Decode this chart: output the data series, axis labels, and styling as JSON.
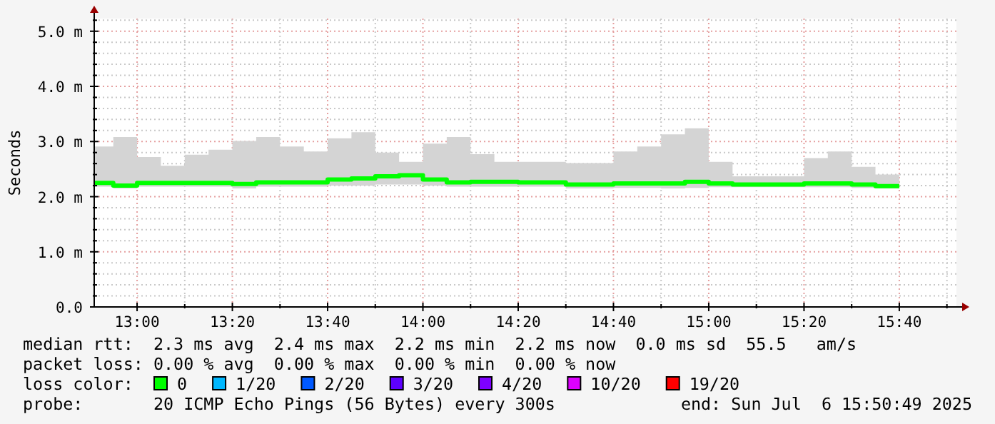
{
  "chart_data": {
    "type": "step",
    "ylabel": "Seconds",
    "x": [
      "2025-07-06T12:55",
      "2025-07-06T13:00",
      "2025-07-06T13:05",
      "2025-07-06T13:10",
      "2025-07-06T13:15",
      "2025-07-06T13:20",
      "2025-07-06T13:25",
      "2025-07-06T13:30",
      "2025-07-06T13:35",
      "2025-07-06T13:40",
      "2025-07-06T13:45",
      "2025-07-06T13:50",
      "2025-07-06T13:55",
      "2025-07-06T14:00",
      "2025-07-06T14:05",
      "2025-07-06T14:10",
      "2025-07-06T14:15",
      "2025-07-06T14:20",
      "2025-07-06T14:25",
      "2025-07-06T14:30",
      "2025-07-06T14:35",
      "2025-07-06T14:40",
      "2025-07-06T14:45",
      "2025-07-06T14:50",
      "2025-07-06T14:55",
      "2025-07-06T15:00",
      "2025-07-06T15:05",
      "2025-07-06T15:10",
      "2025-07-06T15:15",
      "2025-07-06T15:20",
      "2025-07-06T15:25",
      "2025-07-06T15:30",
      "2025-07-06T15:35",
      "2025-07-06T15:40"
    ],
    "series": [
      {
        "name": "0",
        "color": "#00ff00",
        "values": [
          2.25,
          2.2,
          2.25,
          2.25,
          2.25,
          2.25,
          2.23,
          2.26,
          2.26,
          2.26,
          2.31,
          2.33,
          2.37,
          2.39,
          2.31,
          2.26,
          2.27,
          2.27,
          2.26,
          2.26,
          2.22,
          2.22,
          2.24,
          2.24,
          2.24,
          2.27,
          2.24,
          2.22,
          2.22,
          2.22,
          2.24,
          2.24,
          2.22,
          2.19
        ],
        "lower": [
          2.18,
          2.15,
          2.18,
          2.18,
          2.18,
          2.18,
          2.15,
          2.18,
          2.18,
          2.18,
          2.2,
          2.2,
          2.22,
          2.22,
          2.2,
          2.18,
          2.18,
          2.18,
          2.18,
          2.18,
          2.15,
          2.15,
          2.16,
          2.16,
          2.15,
          2.16,
          2.17,
          2.17,
          2.17,
          2.17,
          2.17,
          2.17,
          2.16,
          2.15
        ],
        "upper": [
          2.91,
          3.08,
          2.72,
          2.56,
          2.76,
          2.85,
          3.01,
          3.08,
          2.91,
          2.82,
          3.06,
          3.17,
          2.8,
          2.63,
          2.96,
          3.08,
          2.77,
          2.63,
          2.63,
          2.63,
          2.61,
          2.61,
          2.82,
          2.91,
          3.13,
          3.24,
          2.63,
          2.37,
          2.37,
          2.37,
          2.7,
          2.82,
          2.54,
          2.4
        ]
      },
      {
        "name": "1/20",
        "color": "#00b8ff",
        "values": [
          null,
          null,
          null,
          null,
          null,
          null,
          null,
          null,
          null,
          null,
          null,
          null,
          null,
          null,
          null,
          null,
          null,
          null,
          null,
          null,
          null,
          null,
          null,
          null,
          null,
          null,
          null,
          null,
          null,
          null,
          null,
          null,
          null,
          null
        ]
      },
      {
        "name": "2/20",
        "color": "#0059ff",
        "values": [
          null,
          null,
          null,
          null,
          null,
          null,
          null,
          null,
          null,
          null,
          null,
          null,
          null,
          null,
          null,
          null,
          null,
          null,
          null,
          null,
          null,
          null,
          null,
          null,
          null,
          null,
          null,
          null,
          null,
          null,
          null,
          null,
          null,
          null
        ]
      },
      {
        "name": "3/20",
        "color": "#5e00ff",
        "values": [
          null,
          null,
          null,
          null,
          null,
          null,
          null,
          null,
          null,
          null,
          null,
          null,
          null,
          null,
          null,
          null,
          null,
          null,
          null,
          null,
          null,
          null,
          null,
          null,
          null,
          null,
          null,
          null,
          null,
          null,
          null,
          null,
          null,
          null
        ]
      },
      {
        "name": "4/20",
        "color": "#7e00ff",
        "values": [
          null,
          null,
          null,
          null,
          null,
          null,
          null,
          null,
          null,
          null,
          null,
          null,
          null,
          null,
          null,
          null,
          null,
          null,
          null,
          null,
          null,
          null,
          null,
          null,
          null,
          null,
          null,
          null,
          null,
          null,
          null,
          null,
          null,
          null
        ]
      },
      {
        "name": "10/20",
        "color": "#dd00ff",
        "values": [
          null,
          null,
          null,
          null,
          null,
          null,
          null,
          null,
          null,
          null,
          null,
          null,
          null,
          null,
          null,
          null,
          null,
          null,
          null,
          null,
          null,
          null,
          null,
          null,
          null,
          null,
          null,
          null,
          null,
          null,
          null,
          null,
          null,
          null
        ]
      },
      {
        "name": "19/20",
        "color": "#ff0000",
        "values": [
          null,
          null,
          null,
          null,
          null,
          null,
          null,
          null,
          null,
          null,
          null,
          null,
          null,
          null,
          null,
          null,
          null,
          null,
          null,
          null,
          null,
          null,
          null,
          null,
          null,
          null,
          null,
          null,
          null,
          null,
          null,
          null,
          null,
          null
        ]
      }
    ],
    "xlim": [
      "2025-07-06T12:51",
      "2025-07-06T15:52"
    ],
    "xticks": [
      {
        "value": "2025-07-06T13:00",
        "label": "13:00"
      },
      {
        "value": "2025-07-06T13:10",
        "label": null
      },
      {
        "value": "2025-07-06T13:20",
        "label": "13:20"
      },
      {
        "value": "2025-07-06T13:30",
        "label": null
      },
      {
        "value": "2025-07-06T13:40",
        "label": "13:40"
      },
      {
        "value": "2025-07-06T13:50",
        "label": null
      },
      {
        "value": "2025-07-06T14:00",
        "label": "14:00"
      },
      {
        "value": "2025-07-06T14:10",
        "label": null
      },
      {
        "value": "2025-07-06T14:20",
        "label": "14:20"
      },
      {
        "value": "2025-07-06T14:30",
        "label": null
      },
      {
        "value": "2025-07-06T14:40",
        "label": "14:40"
      },
      {
        "value": "2025-07-06T14:50",
        "label": null
      },
      {
        "value": "2025-07-06T15:00",
        "label": "15:00"
      },
      {
        "value": "2025-07-06T15:10",
        "label": null
      },
      {
        "value": "2025-07-06T15:20",
        "label": "15:20"
      },
      {
        "value": "2025-07-06T15:30",
        "label": null
      },
      {
        "value": "2025-07-06T15:40",
        "label": "15:40"
      },
      {
        "value": "2025-07-06T15:50",
        "label": null
      }
    ],
    "ylim": [
      0,
      5.23
    ],
    "yticks": [
      {
        "value": 0,
        "label": "0.0"
      },
      {
        "value": 0.2,
        "label": null
      },
      {
        "value": 0.4,
        "label": null
      },
      {
        "value": 0.6,
        "label": null
      },
      {
        "value": 0.8,
        "label": null
      },
      {
        "value": 1,
        "label": "1.0 m"
      },
      {
        "value": 1.2,
        "label": null
      },
      {
        "value": 1.4,
        "label": null
      },
      {
        "value": 1.6,
        "label": null
      },
      {
        "value": 1.8,
        "label": null
      },
      {
        "value": 2,
        "label": "2.0 m"
      },
      {
        "value": 2.2,
        "label": null
      },
      {
        "value": 2.4,
        "label": null
      },
      {
        "value": 2.6,
        "label": null
      },
      {
        "value": 2.8,
        "label": null
      },
      {
        "value": 3,
        "label": "3.0 m"
      },
      {
        "value": 3.2,
        "label": null
      },
      {
        "value": 3.4,
        "label": null
      },
      {
        "value": 3.6,
        "label": null
      },
      {
        "value": 3.8,
        "label": null
      },
      {
        "value": 4,
        "label": "4.0 m"
      },
      {
        "value": 4.2,
        "label": null
      },
      {
        "value": 4.4,
        "label": null
      },
      {
        "value": 4.6,
        "label": null
      },
      {
        "value": 4.8,
        "label": null
      },
      {
        "value": 5,
        "label": "5.0 m"
      },
      {
        "value": 5.2,
        "label": null
      }
    ],
    "grid": true,
    "legend": "bottom",
    "legend_title": "loss color:",
    "annotations": [
      "median rtt:  2.3 ms avg  2.4 ms max  2.2 ms min  2.2 ms now  0.0 ms sd  55.5   am/s",
      "packet loss: 0.00 % avg  0.00 % max  0.00 % min  0.00 % now",
      "probe:       20 ICMP Echo Pings (56 Bytes) every 300s",
      "end: Sun Jul  6 15:50:49 2025"
    ]
  }
}
